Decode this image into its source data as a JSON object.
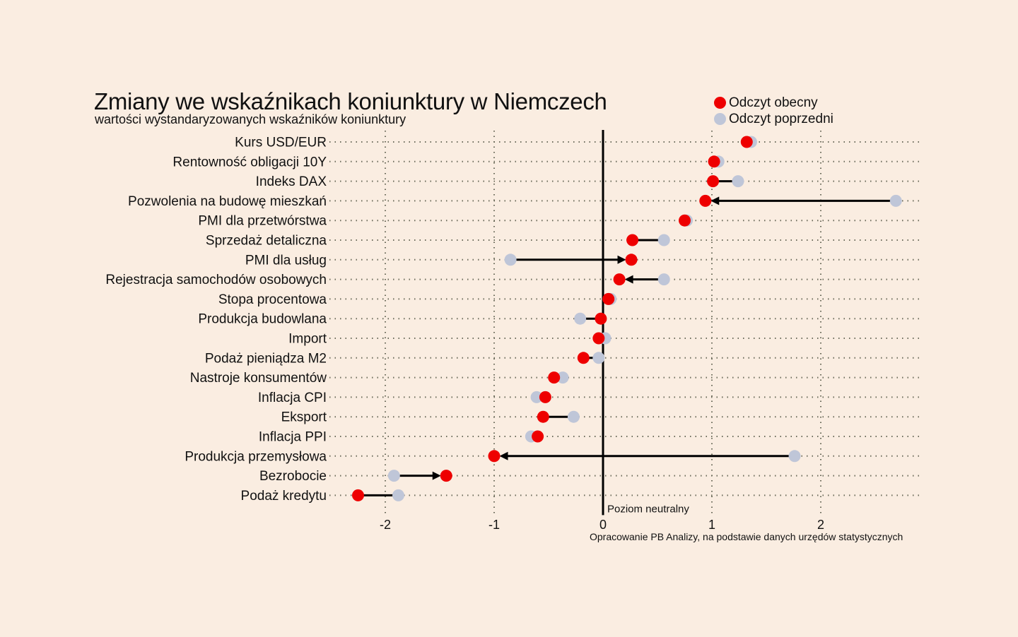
{
  "chart_data": {
    "type": "dumbbell",
    "title": "Zmiany we wskaźnikach koniunktury w Niemczech",
    "subtitle": "wartości wystandaryzowanych wskaźników koniunktury",
    "legend": {
      "placement": "top-right",
      "current_label": "Odczyt obecny",
      "previous_label": "Odczyt poprzedni"
    },
    "colors": {
      "current": "#ee0000",
      "previous": "#bfc6d8",
      "background": "#faede1",
      "line": "#000000",
      "grid": "#6b6b5a"
    },
    "neutral_label": "Poziom neutralny",
    "source": "Opracowanie PB Analizy, na podstawie danych urzędów statystycznych",
    "xlim": [
      -2.3,
      2.9
    ],
    "xticks": [
      -2,
      -1,
      0,
      1,
      2
    ],
    "xtick_labels": [
      "-2",
      "-1",
      "0",
      "1",
      "2"
    ],
    "grid": true,
    "categories": [
      "Kurs USD/EUR",
      "Rentowność obligacji 10Y",
      "Indeks DAX",
      "Pozwolenia na budowę mieszkań",
      "PMI dla przetwórstwa",
      "Sprzedaż detaliczna",
      "PMI dla usług",
      "Rejestracja samochodów osobowych",
      "Stopa procentowa",
      "Produkcja budowlana",
      "Import",
      "Podaż pieniądza M2",
      "Nastroje konsumentów",
      "Inflacja CPI",
      "Eksport",
      "Inflacja PPI",
      "Produkcja przemysłowa",
      "Bezrobocie",
      "Podaż kredytu"
    ],
    "series": [
      {
        "name": "Odczyt obecny",
        "values": [
          1.32,
          1.02,
          1.01,
          0.94,
          0.75,
          0.27,
          0.26,
          0.15,
          0.05,
          -0.02,
          -0.04,
          -0.18,
          -0.45,
          -0.53,
          -0.55,
          -0.6,
          -1.0,
          -1.44,
          -2.25
        ]
      },
      {
        "name": "Odczyt poprzedni",
        "values": [
          1.36,
          1.06,
          1.24,
          2.69,
          0.77,
          0.56,
          -0.85,
          0.56,
          0.07,
          -0.21,
          0.02,
          -0.04,
          -0.37,
          -0.61,
          -0.27,
          -0.66,
          1.76,
          -1.92,
          -1.88
        ]
      }
    ]
  }
}
